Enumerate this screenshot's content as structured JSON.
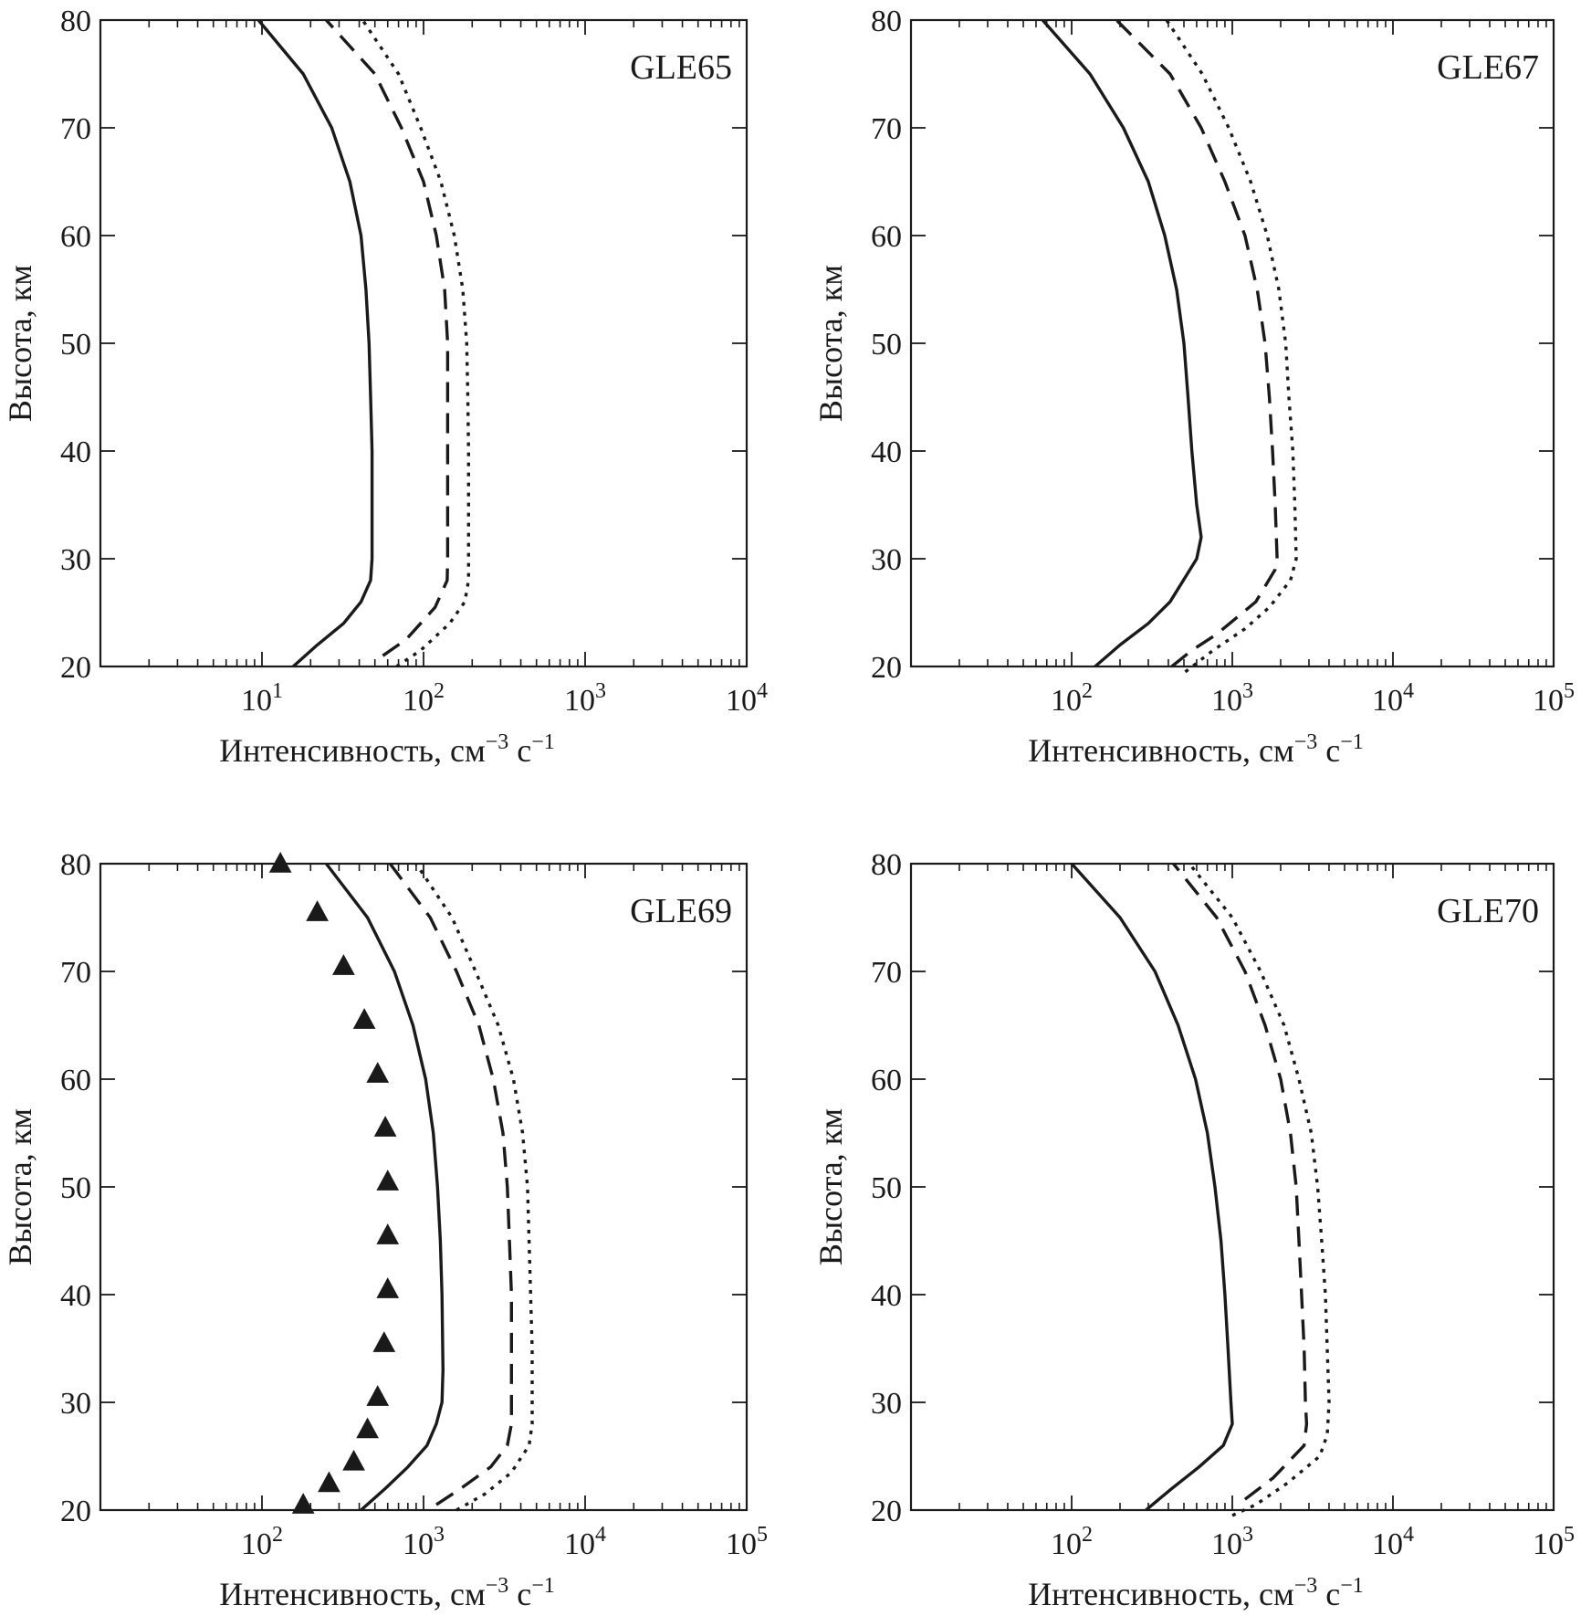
{
  "figure": {
    "ink_color": "#1a1a1a",
    "background": "#ffffff"
  },
  "chart_data": [
    {
      "type": "line",
      "title": "GLE65",
      "xlabel_main": "Интенсивность, см",
      "xlabel_exp1": "−3",
      "xlabel_mid": " с",
      "xlabel_exp2": "−1",
      "ylabel": "Высота, км",
      "x_scale": "log",
      "xlim": [
        1,
        10000
      ],
      "ylim": [
        20,
        80
      ],
      "x_tick_labels": [
        {
          "value": 10,
          "base": "10",
          "exp": "1"
        },
        {
          "value": 100,
          "base": "10",
          "exp": "2"
        },
        {
          "value": 1000,
          "base": "10",
          "exp": "3"
        },
        {
          "value": 10000,
          "base": "10",
          "exp": "4"
        }
      ],
      "y_ticks": [
        20,
        30,
        40,
        50,
        60,
        70,
        80
      ],
      "series": [
        {
          "style": "solid",
          "points": [
            [
              15.6,
              20
            ],
            [
              22,
              22
            ],
            [
              32,
              24
            ],
            [
              41,
              26
            ],
            [
              47,
              28
            ],
            [
              48,
              30
            ],
            [
              48,
              35
            ],
            [
              48,
              40
            ],
            [
              47,
              45
            ],
            [
              46,
              50
            ],
            [
              44,
              55
            ],
            [
              41,
              60
            ],
            [
              35,
              65
            ],
            [
              27,
              70
            ],
            [
              18,
              75
            ],
            [
              9.5,
              80
            ]
          ]
        },
        {
          "style": "dashed",
          "points": [
            [
              56,
              21
            ],
            [
              78,
              22.5
            ],
            [
              118,
              25.5
            ],
            [
              140,
              28
            ],
            [
              141,
              30
            ],
            [
              141,
              40
            ],
            [
              141,
              50
            ],
            [
              135,
              55
            ],
            [
              120,
              60
            ],
            [
              100,
              65
            ],
            [
              73,
              70
            ],
            [
              50,
              75
            ],
            [
              25,
              80
            ]
          ]
        },
        {
          "style": "dotted",
          "points": [
            [
              68,
              20
            ],
            [
              96,
              21.5
            ],
            [
              145,
              24
            ],
            [
              180,
              26
            ],
            [
              190,
              28
            ],
            [
              190,
              30
            ],
            [
              190,
              40
            ],
            [
              188,
              45
            ],
            [
              185,
              50
            ],
            [
              175,
              55
            ],
            [
              155,
              60
            ],
            [
              128,
              65
            ],
            [
              96,
              70
            ],
            [
              70,
              75
            ],
            [
              42,
              80
            ]
          ]
        }
      ]
    },
    {
      "type": "line",
      "title": "GLE67",
      "xlabel_main": "Интенсивность, см",
      "xlabel_exp1": "−3",
      "xlabel_mid": " с",
      "xlabel_exp2": "−1",
      "ylabel": "Высота, км",
      "x_scale": "log",
      "xlim": [
        10,
        100000
      ],
      "ylim": [
        20,
        80
      ],
      "x_tick_labels": [
        {
          "value": 100,
          "base": "10",
          "exp": "2"
        },
        {
          "value": 1000,
          "base": "10",
          "exp": "3"
        },
        {
          "value": 10000,
          "base": "10",
          "exp": "4"
        },
        {
          "value": 100000,
          "base": "10",
          "exp": "5"
        }
      ],
      "y_ticks": [
        20,
        30,
        40,
        50,
        60,
        70,
        80
      ],
      "series": [
        {
          "style": "solid",
          "points": [
            [
              140,
              20
            ],
            [
              200,
              22
            ],
            [
              300,
              24
            ],
            [
              410,
              26
            ],
            [
              600,
              30
            ],
            [
              640,
              32
            ],
            [
              600,
              35
            ],
            [
              560,
              40
            ],
            [
              530,
              45
            ],
            [
              500,
              50
            ],
            [
              450,
              55
            ],
            [
              380,
              60
            ],
            [
              300,
              65
            ],
            [
              210,
              70
            ],
            [
              130,
              75
            ],
            [
              66,
              80
            ]
          ]
        },
        {
          "style": "dashed",
          "points": [
            [
              420,
              20
            ],
            [
              560,
              21.5
            ],
            [
              800,
              23
            ],
            [
              1400,
              26
            ],
            [
              1850,
              29
            ],
            [
              1900,
              30
            ],
            [
              1850,
              35
            ],
            [
              1780,
              40
            ],
            [
              1700,
              45
            ],
            [
              1600,
              50
            ],
            [
              1430,
              55
            ],
            [
              1200,
              60
            ],
            [
              900,
              65
            ],
            [
              640,
              70
            ],
            [
              410,
              75
            ],
            [
              190,
              80
            ]
          ]
        },
        {
          "style": "dotted",
          "points": [
            [
              510,
              19.5
            ],
            [
              760,
              21.5
            ],
            [
              1200,
              23.5
            ],
            [
              1700,
              25.5
            ],
            [
              2300,
              28
            ],
            [
              2500,
              30
            ],
            [
              2450,
              35
            ],
            [
              2380,
              40
            ],
            [
              2250,
              45
            ],
            [
              2150,
              50
            ],
            [
              1950,
              55
            ],
            [
              1650,
              60
            ],
            [
              1300,
              65
            ],
            [
              950,
              70
            ],
            [
              650,
              75
            ],
            [
              390,
              80
            ]
          ]
        }
      ]
    },
    {
      "type": "line",
      "title": "GLE69",
      "xlabel_main": "Интенсивность, см",
      "xlabel_exp1": "−3",
      "xlabel_mid": " с",
      "xlabel_exp2": "−1",
      "ylabel": "Высота, км",
      "x_scale": "log",
      "xlim": [
        10,
        100000
      ],
      "ylim": [
        20,
        80
      ],
      "x_tick_labels": [
        {
          "value": 100,
          "base": "10",
          "exp": "2"
        },
        {
          "value": 1000,
          "base": "10",
          "exp": "3"
        },
        {
          "value": 10000,
          "base": "10",
          "exp": "4"
        },
        {
          "value": 100000,
          "base": "10",
          "exp": "5"
        }
      ],
      "y_ticks": [
        20,
        30,
        40,
        50,
        60,
        70,
        80
      ],
      "series": [
        {
          "style": "solid",
          "points": [
            [
              410,
              20
            ],
            [
              580,
              22
            ],
            [
              800,
              24
            ],
            [
              1050,
              26
            ],
            [
              1200,
              28
            ],
            [
              1300,
              30
            ],
            [
              1320,
              33
            ],
            [
              1300,
              40
            ],
            [
              1270,
              45
            ],
            [
              1220,
              50
            ],
            [
              1150,
              55
            ],
            [
              1030,
              60
            ],
            [
              860,
              65
            ],
            [
              660,
              70
            ],
            [
              450,
              75
            ],
            [
              250,
              80
            ]
          ]
        },
        {
          "style": "dashed",
          "points": [
            [
              1200,
              20.5
            ],
            [
              1700,
              22
            ],
            [
              2600,
              24
            ],
            [
              3300,
              26
            ],
            [
              3500,
              28
            ],
            [
              3500,
              30
            ],
            [
              3500,
              40
            ],
            [
              3400,
              45
            ],
            [
              3300,
              50
            ],
            [
              3100,
              55
            ],
            [
              2700,
              60
            ],
            [
              2200,
              65
            ],
            [
              1600,
              70
            ],
            [
              1100,
              75
            ],
            [
              620,
              80
            ]
          ]
        },
        {
          "style": "dotted",
          "points": [
            [
              1600,
              20
            ],
            [
              2400,
              21.5
            ],
            [
              3500,
              23.5
            ],
            [
              4500,
              26
            ],
            [
              4700,
              28
            ],
            [
              4700,
              30
            ],
            [
              4700,
              35
            ],
            [
              4600,
              40
            ],
            [
              4500,
              45
            ],
            [
              4400,
              50
            ],
            [
              4100,
              55
            ],
            [
              3600,
              60
            ],
            [
              2900,
              65
            ],
            [
              2100,
              70
            ],
            [
              1500,
              75
            ],
            [
              900,
              80
            ]
          ]
        },
        {
          "style": "markers",
          "marker": "triangle",
          "points": [
            [
              180,
              20.5
            ],
            [
              260,
              22.5
            ],
            [
              370,
              24.5
            ],
            [
              450,
              27.5
            ],
            [
              520,
              30.5
            ],
            [
              570,
              35.5
            ],
            [
              600,
              40.5
            ],
            [
              600,
              45.5
            ],
            [
              600,
              50.5
            ],
            [
              580,
              55.5
            ],
            [
              520,
              60.5
            ],
            [
              430,
              65.5
            ],
            [
              320,
              70.5
            ],
            [
              220,
              75.5
            ],
            [
              130,
              80
            ]
          ]
        }
      ]
    },
    {
      "type": "line",
      "title": "GLE70",
      "xlabel_main": "Интенсивность, см",
      "xlabel_exp1": "−3",
      "xlabel_mid": " с",
      "xlabel_exp2": "−1",
      "ylabel": "Высота, км",
      "x_scale": "log",
      "xlim": [
        10,
        100000
      ],
      "ylim": [
        20,
        80
      ],
      "x_tick_labels": [
        {
          "value": 100,
          "base": "10",
          "exp": "2"
        },
        {
          "value": 1000,
          "base": "10",
          "exp": "3"
        },
        {
          "value": 10000,
          "base": "10",
          "exp": "4"
        },
        {
          "value": 100000,
          "base": "10",
          "exp": "5"
        }
      ],
      "y_ticks": [
        20,
        30,
        40,
        50,
        60,
        70,
        80
      ],
      "series": [
        {
          "style": "solid",
          "points": [
            [
              290,
              20
            ],
            [
              420,
              22
            ],
            [
              620,
              24
            ],
            [
              880,
              26
            ],
            [
              1000,
              28
            ],
            [
              980,
              30
            ],
            [
              940,
              35
            ],
            [
              900,
              40
            ],
            [
              850,
              45
            ],
            [
              780,
              50
            ],
            [
              700,
              55
            ],
            [
              590,
              60
            ],
            [
              460,
              65
            ],
            [
              330,
              70
            ],
            [
              200,
              75
            ],
            [
              100,
              80
            ]
          ]
        },
        {
          "style": "dashed",
          "points": [
            [
              1200,
              21
            ],
            [
              1800,
              23
            ],
            [
              2800,
              26
            ],
            [
              2900,
              28
            ],
            [
              2850,
              30
            ],
            [
              2800,
              35
            ],
            [
              2700,
              40
            ],
            [
              2600,
              45
            ],
            [
              2500,
              50
            ],
            [
              2300,
              55
            ],
            [
              2000,
              60
            ],
            [
              1600,
              65
            ],
            [
              1200,
              70
            ],
            [
              800,
              75
            ],
            [
              430,
              80
            ]
          ]
        },
        {
          "style": "dotted",
          "points": [
            [
              1000,
              19.5
            ],
            [
              1400,
              20.5
            ],
            [
              2200,
              22.5
            ],
            [
              3500,
              25
            ],
            [
              3900,
              27
            ],
            [
              4000,
              30
            ],
            [
              3900,
              35
            ],
            [
              3800,
              40
            ],
            [
              3600,
              45
            ],
            [
              3400,
              50
            ],
            [
              3100,
              55
            ],
            [
              2600,
              60
            ],
            [
              2100,
              65
            ],
            [
              1500,
              70
            ],
            [
              1000,
              75
            ],
            [
              540,
              80
            ]
          ]
        }
      ]
    }
  ]
}
